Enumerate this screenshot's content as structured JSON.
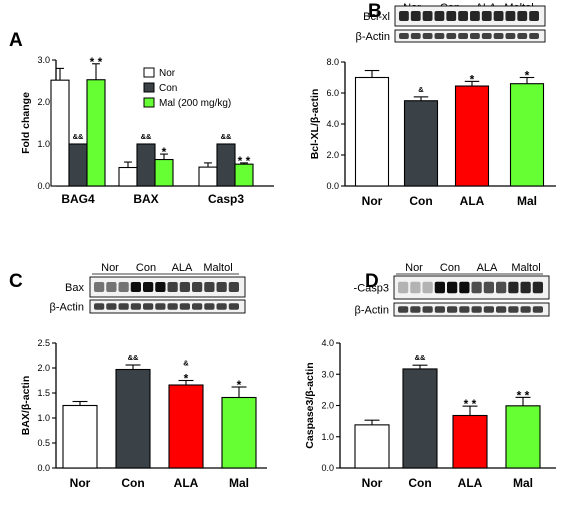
{
  "colors": {
    "Nor": "#ffffff",
    "Con": "#3a4248",
    "ALA": "#ff0000",
    "Mal": "#66ff33"
  },
  "chart_data": [
    {
      "panel": "A",
      "type": "bar",
      "ylabel": "Fold change",
      "ylim": [
        0,
        3.0
      ],
      "yticks": [
        "0.0",
        "1.0",
        "2.0",
        "3.0"
      ],
      "categories": [
        "BAG4",
        "BAX",
        "Casp3"
      ],
      "legend": {
        "placement": "top-right",
        "entries": [
          "Nor",
          "Con",
          "Mal (200 mg/kg)"
        ]
      },
      "series": [
        {
          "name": "Nor",
          "color": "#ffffff",
          "values": [
            2.52,
            0.44,
            0.45
          ],
          "errors": [
            0.28,
            0.13,
            0.1
          ],
          "annotations": [
            "",
            "",
            ""
          ]
        },
        {
          "name": "Con",
          "color": "#3a4248",
          "values": [
            1.0,
            1.0,
            1.0
          ],
          "errors": [
            0,
            0,
            0
          ],
          "annotations": [
            "&&",
            "&&",
            "&&"
          ]
        },
        {
          "name": "Mal (200 mg/kg)",
          "color": "#66ff33",
          "values": [
            2.53,
            0.63,
            0.52
          ],
          "errors": [
            0.38,
            0.13,
            0.03
          ],
          "annotations": [
            "* *",
            "*",
            "* *"
          ]
        }
      ]
    },
    {
      "panel": "B",
      "type": "bar",
      "ylabel": "Bcl-XL/β-actin",
      "ylim": [
        0,
        8.0
      ],
      "yticks": [
        "0.0",
        "2.0",
        "4.0",
        "6.0",
        "8.0"
      ],
      "categories": [
        "Nor",
        "Con",
        "ALA",
        "Mal"
      ],
      "values": [
        7.0,
        5.5,
        6.45,
        6.6
      ],
      "errors": [
        0.45,
        0.25,
        0.3,
        0.4
      ],
      "annotations": [
        "",
        "&",
        "*",
        "*"
      ],
      "blot": {
        "rows": [
          "Bcl-xl",
          "β-Actin"
        ],
        "groups": [
          "Nor",
          "Con",
          "ALA",
          "Maltol"
        ]
      }
    },
    {
      "panel": "C",
      "type": "bar",
      "ylabel": "BAX/β-actin",
      "ylim": [
        0,
        2.5
      ],
      "yticks": [
        "0.0",
        "0.5",
        "1.0",
        "1.5",
        "2.0",
        "2.5"
      ],
      "categories": [
        "Nor",
        "Con",
        "ALA",
        "Mal"
      ],
      "values": [
        1.25,
        1.97,
        1.66,
        1.41
      ],
      "errors": [
        0.08,
        0.09,
        0.09,
        0.21
      ],
      "annotations": [
        "",
        "&&",
        "&\n*",
        "*"
      ],
      "blot": {
        "rows": [
          "Bax",
          "β-Actin"
        ],
        "groups": [
          "Nor",
          "Con",
          "ALA",
          "Maltol"
        ]
      }
    },
    {
      "panel": "D",
      "type": "bar",
      "ylabel": "Caspase3/β-actin",
      "ylim": [
        0,
        4.0
      ],
      "yticks": [
        "0.0",
        "1.0",
        "2.0",
        "3.0",
        "4.0"
      ],
      "categories": [
        "Nor",
        "Con",
        "ALA",
        "Mal"
      ],
      "values": [
        1.38,
        3.17,
        1.68,
        1.99
      ],
      "errors": [
        0.15,
        0.12,
        0.3,
        0.27
      ],
      "annotations": [
        "",
        "&&",
        "* *",
        "* *"
      ],
      "blot": {
        "rows": [
          "-Casp3",
          "β-Actin"
        ],
        "groups": [
          "Nor",
          "Con",
          "ALA",
          "Maltol"
        ]
      }
    }
  ]
}
